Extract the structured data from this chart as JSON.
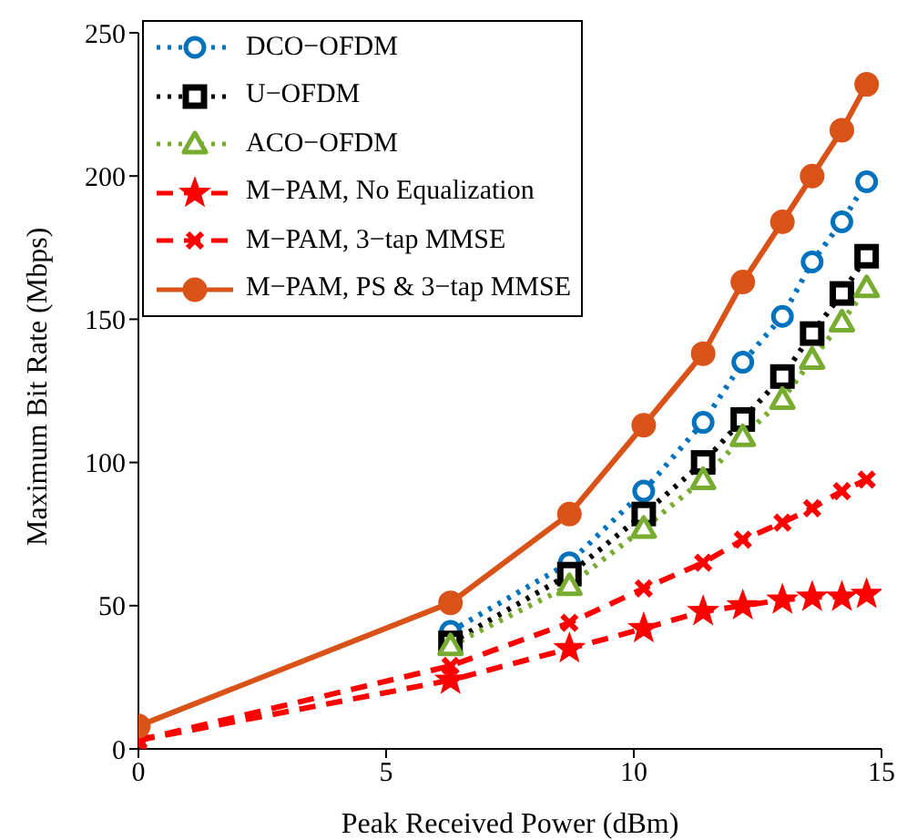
{
  "chart_data": {
    "type": "line",
    "xlabel": "Peak Received Power (dBm)",
    "ylabel": "Maximum Bit Rate (Mbps)",
    "x": [
      0,
      6.3,
      8.7,
      10.2,
      11.4,
      12.2,
      13.0,
      13.6,
      14.2,
      14.7
    ],
    "xlim": [
      0,
      15
    ],
    "xticks": [
      0,
      5,
      10,
      15
    ],
    "ylim": [
      0,
      250
    ],
    "yticks": [
      0,
      50,
      100,
      150,
      200,
      250
    ],
    "legend": "top left",
    "series": [
      {
        "name": "DCO−OFDM",
        "color": "#0072bd",
        "marker": "circle",
        "line_style": "dotted",
        "values": [
          null,
          41,
          65,
          90,
          114,
          135,
          151,
          170,
          184,
          198
        ]
      },
      {
        "name": "U−OFDM",
        "color": "#000000",
        "marker": "square",
        "line_style": "dotted",
        "values": [
          null,
          37,
          61,
          82,
          100,
          115,
          130,
          145,
          159,
          172
        ]
      },
      {
        "name": "ACO−OFDM",
        "color": "#77ac30",
        "marker": "triangle",
        "line_style": "dotted",
        "values": [
          null,
          36,
          57,
          77,
          94,
          109,
          122,
          136,
          149,
          161
        ]
      },
      {
        "name": "M−PAM, No Equalization",
        "color": "#ff0000",
        "marker": "star",
        "line_style": "dashed",
        "values": [
          3,
          24,
          35,
          42,
          48,
          50,
          52,
          53,
          53,
          54
        ]
      },
      {
        "name": "M−PAM, 3−tap MMSE",
        "color": "#ff0000",
        "marker": "cross",
        "line_style": "dashed",
        "values": [
          3,
          29,
          44,
          56,
          65,
          73,
          79,
          84,
          90,
          94
        ]
      },
      {
        "name": "M−PAM, PS & 3−tap MMSE",
        "color": "#d95319",
        "marker": "circle",
        "line_style": "solid",
        "values": [
          8,
          51,
          82,
          113,
          138,
          163,
          184,
          200,
          216,
          232
        ]
      }
    ]
  }
}
